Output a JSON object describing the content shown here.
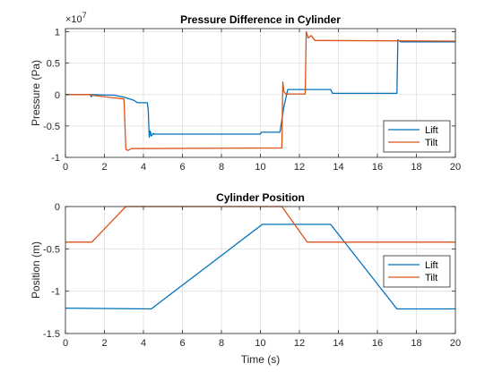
{
  "window": {
    "background": "#ffffff"
  },
  "chart_data": [
    {
      "type": "line",
      "title": "Pressure Difference in Cylinder",
      "xlabel": "",
      "ylabel": "Pressure (Pa)",
      "exponent_label": "×10",
      "exponent_power": "7",
      "xlim": [
        0,
        20
      ],
      "ylim": [
        -1,
        1.05
      ],
      "xticks": [
        0,
        2,
        4,
        6,
        8,
        10,
        12,
        14,
        16,
        18,
        20
      ],
      "yticks": [
        -1,
        -0.5,
        0,
        0.5,
        1
      ],
      "ytick_labels": [
        "-1",
        "-0.5",
        "0",
        "0.5",
        "1"
      ],
      "grid": true,
      "legend_position": "bottom-right",
      "series": [
        {
          "name": "Lift",
          "color": "#0072bd",
          "x": [
            0,
            1.3,
            1.3,
            1.35,
            1.35,
            2.5,
            3.0,
            3.5,
            3.7,
            4.2,
            4.25,
            4.3,
            4.35,
            4.4,
            4.5,
            4.6,
            10.0,
            10.05,
            10.1,
            11.0,
            11.2,
            11.4,
            13.6,
            13.7,
            17.0,
            17.05,
            17.2,
            20
          ],
          "y": [
            0,
            0,
            -0.03,
            -0.03,
            0,
            -0.01,
            -0.04,
            -0.09,
            -0.13,
            -0.13,
            -0.26,
            -0.68,
            -0.58,
            -0.66,
            -0.62,
            -0.63,
            -0.63,
            -0.6,
            -0.6,
            -0.6,
            -0.2,
            0.08,
            0.08,
            0.02,
            0.02,
            0.87,
            0.84,
            0.84
          ]
        },
        {
          "name": "Tilt",
          "color": "#d95319",
          "x": [
            0,
            1.3,
            1.35,
            3.0,
            3.1,
            3.2,
            3.4,
            11.1,
            11.15,
            11.2,
            11.3,
            12.3,
            12.35,
            12.45,
            12.6,
            12.8,
            13.0,
            20
          ],
          "y": [
            0,
            0,
            -0.01,
            -0.07,
            -0.87,
            -0.89,
            -0.86,
            -0.85,
            0.2,
            0.05,
            0.01,
            0.01,
            1.0,
            0.9,
            0.94,
            0.86,
            0.86,
            0.85
          ]
        }
      ]
    },
    {
      "type": "line",
      "title": "Cylinder Position",
      "xlabel": "Time (s)",
      "ylabel": "Position (m)",
      "xlim": [
        0,
        20
      ],
      "ylim": [
        -1.5,
        0
      ],
      "xticks": [
        0,
        2,
        4,
        6,
        8,
        10,
        12,
        14,
        16,
        18,
        20
      ],
      "yticks": [
        -1.5,
        -1,
        -0.5,
        0
      ],
      "ytick_labels": [
        "-1.5",
        "-1",
        "-0.5",
        "0"
      ],
      "grid": true,
      "legend_position": "right",
      "series": [
        {
          "name": "Lift",
          "color": "#0072bd",
          "x": [
            0,
            4.4,
            10.1,
            13.6,
            17.0,
            20
          ],
          "y": [
            -1.2,
            -1.21,
            -0.21,
            -0.21,
            -1.21,
            -1.21
          ]
        },
        {
          "name": "Tilt",
          "color": "#d95319",
          "x": [
            0,
            1.35,
            3.1,
            11.1,
            12.4,
            20
          ],
          "y": [
            -0.42,
            -0.42,
            0,
            0,
            -0.42,
            -0.42
          ]
        }
      ]
    }
  ]
}
